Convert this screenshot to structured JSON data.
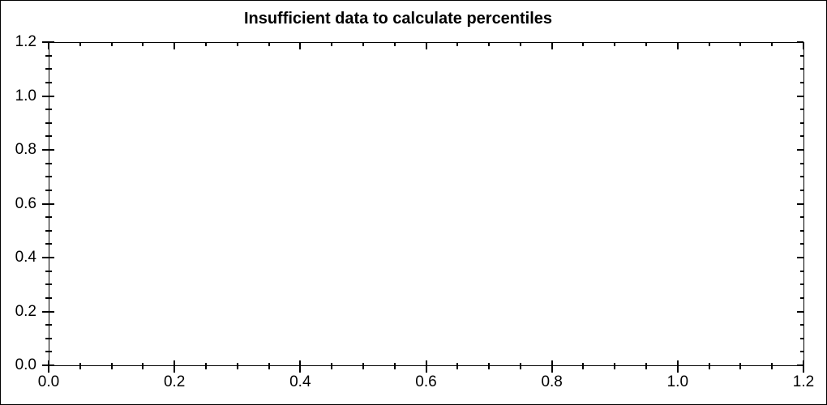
{
  "window": {
    "background_color": "#ffffff",
    "border_color": "#000000"
  },
  "chart_data": {
    "type": "scatter",
    "title": "Insufficient data to calculate percentiles",
    "series": [],
    "annotations": [],
    "grid": false,
    "legend": null,
    "x_axis": {
      "min": 0.0,
      "max": 1.2,
      "major_step": 0.2,
      "minor_step": 0.05,
      "tick_labels": [
        "0.0",
        "0.2",
        "0.4",
        "0.6",
        "0.8",
        "1.0",
        "1.2"
      ],
      "label": ""
    },
    "y_axis": {
      "min": 0.0,
      "max": 1.2,
      "major_step": 0.2,
      "minor_step": 0.05,
      "tick_labels": [
        "0.0",
        "0.2",
        "0.4",
        "0.6",
        "0.8",
        "1.0",
        "1.2"
      ],
      "label": ""
    },
    "colors": {
      "axis": "#000000",
      "text": "#000000",
      "plot_background": "#ffffff"
    }
  }
}
